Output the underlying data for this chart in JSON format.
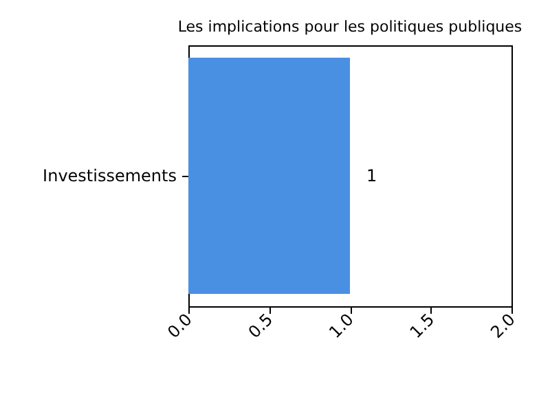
{
  "chart_data": {
    "type": "bar",
    "orientation": "horizontal",
    "title": "Les implications pour les politiques publiques",
    "categories": [
      "Investissements"
    ],
    "values": [
      1
    ],
    "color": "#4a90e2",
    "xlim": [
      0,
      2
    ],
    "xticks": [
      {
        "value": 0,
        "label": "0.0"
      },
      {
        "value": 0.5,
        "label": "0.5"
      },
      {
        "value": 1,
        "label": "1.0"
      },
      {
        "value": 1.5,
        "label": "1.5"
      },
      {
        "value": 2,
        "label": "2.0"
      }
    ],
    "data_labels": true
  }
}
